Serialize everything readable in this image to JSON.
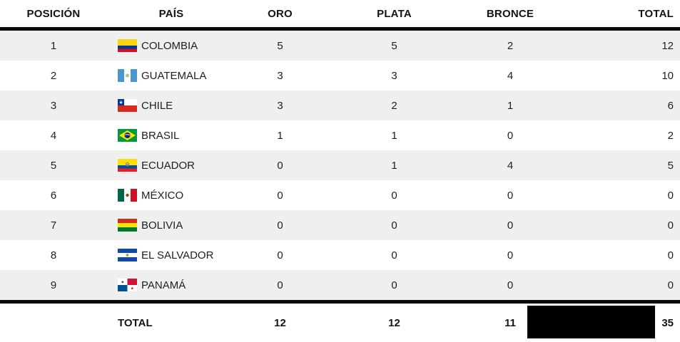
{
  "table": {
    "columns": [
      {
        "key": "position",
        "label": "POSICIÓN"
      },
      {
        "key": "country",
        "label": "PAÍS"
      },
      {
        "key": "gold",
        "label": "ORO"
      },
      {
        "key": "silver",
        "label": "PLATA"
      },
      {
        "key": "bronze",
        "label": "BRONCE"
      },
      {
        "key": "total",
        "label": "TOTAL"
      }
    ],
    "rows": [
      {
        "position": "1",
        "country": "COLOMBIA",
        "flag": "colombia",
        "gold": "5",
        "silver": "5",
        "bronze": "2",
        "total": "12"
      },
      {
        "position": "2",
        "country": "GUATEMALA",
        "flag": "guatemala",
        "gold": "3",
        "silver": "3",
        "bronze": "4",
        "total": "10"
      },
      {
        "position": "3",
        "country": "CHILE",
        "flag": "chile",
        "gold": "3",
        "silver": "2",
        "bronze": "1",
        "total": "6"
      },
      {
        "position": "4",
        "country": "BRASIL",
        "flag": "brasil",
        "gold": "1",
        "silver": "1",
        "bronze": "0",
        "total": "2"
      },
      {
        "position": "5",
        "country": "ECUADOR",
        "flag": "ecuador",
        "gold": "0",
        "silver": "1",
        "bronze": "4",
        "total": "5"
      },
      {
        "position": "6",
        "country": "MÉXICO",
        "flag": "mexico",
        "gold": "0",
        "silver": "0",
        "bronze": "0",
        "total": "0"
      },
      {
        "position": "7",
        "country": "BOLIVIA",
        "flag": "bolivia",
        "gold": "0",
        "silver": "0",
        "bronze": "0",
        "total": "0"
      },
      {
        "position": "8",
        "country": "EL SALVADOR",
        "flag": "el-salvador",
        "gold": "0",
        "silver": "0",
        "bronze": "0",
        "total": "0"
      },
      {
        "position": "9",
        "country": "PANAMÁ",
        "flag": "panama",
        "gold": "0",
        "silver": "0",
        "bronze": "0",
        "total": "0"
      }
    ],
    "footer": {
      "label": "TOTAL",
      "gold": "12",
      "silver": "12",
      "bronze": "11",
      "total": "35",
      "redacted": true
    }
  },
  "colors": {
    "background": "#ffffff",
    "stripe": "#efefef",
    "rule": "#0b0b0b",
    "text": "#1f1f1f",
    "redaction": "#000000"
  },
  "chart_data": {
    "type": "table",
    "title": "",
    "columns": [
      "POSICIÓN",
      "PAÍS",
      "ORO",
      "PLATA",
      "BRONCE",
      "TOTAL"
    ],
    "rows": [
      [
        1,
        "COLOMBIA",
        5,
        5,
        2,
        12
      ],
      [
        2,
        "GUATEMALA",
        3,
        3,
        4,
        10
      ],
      [
        3,
        "CHILE",
        3,
        2,
        1,
        6
      ],
      [
        4,
        "BRASIL",
        1,
        1,
        0,
        2
      ],
      [
        5,
        "ECUADOR",
        0,
        1,
        4,
        5
      ],
      [
        6,
        "MÉXICO",
        0,
        0,
        0,
        0
      ],
      [
        7,
        "BOLIVIA",
        0,
        0,
        0,
        0
      ],
      [
        8,
        "EL SALVADOR",
        0,
        0,
        0,
        0
      ],
      [
        9,
        "PANAMÁ",
        0,
        0,
        0,
        0
      ]
    ],
    "footer_totals": {
      "label": "TOTAL",
      "oro": 12,
      "plata": 12,
      "bronce": 11,
      "total": 35
    }
  }
}
